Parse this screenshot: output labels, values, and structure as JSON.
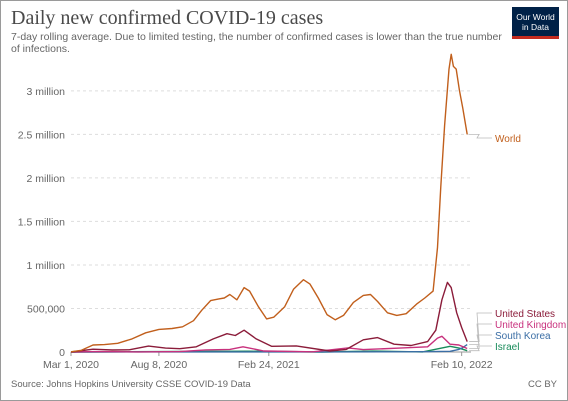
{
  "title": "Daily new confirmed COVID-19 cases",
  "subtitle": "7-day rolling average. Due to limited testing, the number of confirmed cases is lower than the true number of infections.",
  "logo": {
    "line1": "Our World",
    "line2": "in Data"
  },
  "footer": {
    "source": "Source: Johns Hopkins University CSSE COVID-19 Data",
    "license": "CC BY"
  },
  "chart_data": {
    "type": "line",
    "ylim": [
      0,
      3400000
    ],
    "y_ticks": [
      {
        "value": 0,
        "label": "0"
      },
      {
        "value": 500000,
        "label": "500,000"
      },
      {
        "value": 1000000,
        "label": "1 million"
      },
      {
        "value": 1500000,
        "label": "1.5 million"
      },
      {
        "value": 2000000,
        "label": "2 million"
      },
      {
        "value": 2500000,
        "label": "2.5 million"
      },
      {
        "value": 3000000,
        "label": "3 million"
      }
    ],
    "x_range": [
      "2020-03-01",
      "2022-02-27"
    ],
    "x_ticks": [
      {
        "date": "2020-03-01",
        "label": "Mar 1, 2020"
      },
      {
        "date": "2020-08-08",
        "label": "Aug 8, 2020"
      },
      {
        "date": "2021-02-24",
        "label": "Feb 24, 2021"
      },
      {
        "date": "2022-02-10",
        "label": "Feb 10, 2022"
      }
    ],
    "grid": "horizontal dashed",
    "series": [
      {
        "name": "World",
        "color": "#c15f1c",
        "points": [
          [
            "2020-03-01",
            2000
          ],
          [
            "2020-03-20",
            20000
          ],
          [
            "2020-04-10",
            80000
          ],
          [
            "2020-05-01",
            85000
          ],
          [
            "2020-05-25",
            100000
          ],
          [
            "2020-06-20",
            150000
          ],
          [
            "2020-07-15",
            220000
          ],
          [
            "2020-08-08",
            260000
          ],
          [
            "2020-09-01",
            270000
          ],
          [
            "2020-09-20",
            290000
          ],
          [
            "2020-10-10",
            360000
          ],
          [
            "2020-10-25",
            480000
          ],
          [
            "2020-11-10",
            590000
          ],
          [
            "2020-11-25",
            610000
          ],
          [
            "2020-12-05",
            620000
          ],
          [
            "2020-12-15",
            660000
          ],
          [
            "2020-12-28",
            600000
          ],
          [
            "2021-01-10",
            740000
          ],
          [
            "2021-01-20",
            700000
          ],
          [
            "2021-02-05",
            520000
          ],
          [
            "2021-02-20",
            380000
          ],
          [
            "2021-03-05",
            400000
          ],
          [
            "2021-03-25",
            520000
          ],
          [
            "2021-04-10",
            720000
          ],
          [
            "2021-04-28",
            830000
          ],
          [
            "2021-05-10",
            780000
          ],
          [
            "2021-05-25",
            620000
          ],
          [
            "2021-06-10",
            430000
          ],
          [
            "2021-06-25",
            370000
          ],
          [
            "2021-07-10",
            420000
          ],
          [
            "2021-07-28",
            570000
          ],
          [
            "2021-08-15",
            650000
          ],
          [
            "2021-08-28",
            660000
          ],
          [
            "2021-09-10",
            580000
          ],
          [
            "2021-09-28",
            450000
          ],
          [
            "2021-10-15",
            420000
          ],
          [
            "2021-11-01",
            440000
          ],
          [
            "2021-11-20",
            550000
          ],
          [
            "2021-12-05",
            620000
          ],
          [
            "2021-12-20",
            700000
          ],
          [
            "2021-12-28",
            1200000
          ],
          [
            "2022-01-03",
            1900000
          ],
          [
            "2022-01-10",
            2600000
          ],
          [
            "2022-01-18",
            3250000
          ],
          [
            "2022-01-22",
            3420000
          ],
          [
            "2022-01-26",
            3280000
          ],
          [
            "2022-01-31",
            3250000
          ],
          [
            "2022-02-06",
            3000000
          ],
          [
            "2022-02-12",
            2800000
          ],
          [
            "2022-02-20",
            2500000
          ]
        ]
      },
      {
        "name": "United States",
        "color": "#8b1c3a",
        "points": [
          [
            "2020-03-01",
            0
          ],
          [
            "2020-04-10",
            32000
          ],
          [
            "2020-05-15",
            23000
          ],
          [
            "2020-06-15",
            25000
          ],
          [
            "2020-07-20",
            68000
          ],
          [
            "2020-08-20",
            45000
          ],
          [
            "2020-09-15",
            38000
          ],
          [
            "2020-10-15",
            60000
          ],
          [
            "2020-11-15",
            150000
          ],
          [
            "2020-12-10",
            210000
          ],
          [
            "2020-12-25",
            190000
          ],
          [
            "2021-01-10",
            250000
          ],
          [
            "2021-02-01",
            150000
          ],
          [
            "2021-03-01",
            65000
          ],
          [
            "2021-04-15",
            70000
          ],
          [
            "2021-06-15",
            12000
          ],
          [
            "2021-07-15",
            30000
          ],
          [
            "2021-08-15",
            140000
          ],
          [
            "2021-09-10",
            165000
          ],
          [
            "2021-10-10",
            90000
          ],
          [
            "2021-11-10",
            75000
          ],
          [
            "2021-12-10",
            120000
          ],
          [
            "2021-12-25",
            250000
          ],
          [
            "2022-01-05",
            600000
          ],
          [
            "2022-01-15",
            800000
          ],
          [
            "2022-01-22",
            740000
          ],
          [
            "2022-02-01",
            450000
          ],
          [
            "2022-02-10",
            280000
          ],
          [
            "2022-02-20",
            120000
          ]
        ]
      },
      {
        "name": "United Kingdom",
        "color": "#c8317d",
        "points": [
          [
            "2020-03-01",
            0
          ],
          [
            "2020-04-15",
            5000
          ],
          [
            "2020-07-01",
            600
          ],
          [
            "2020-09-15",
            5000
          ],
          [
            "2020-11-01",
            24000
          ],
          [
            "2020-12-15",
            30000
          ],
          [
            "2021-01-08",
            60000
          ],
          [
            "2021-02-15",
            12000
          ],
          [
            "2021-05-15",
            2000
          ],
          [
            "2021-07-18",
            47000
          ],
          [
            "2021-08-15",
            28000
          ],
          [
            "2021-10-20",
            45000
          ],
          [
            "2021-12-10",
            60000
          ],
          [
            "2021-12-28",
            160000
          ],
          [
            "2022-01-05",
            180000
          ],
          [
            "2022-01-20",
            90000
          ],
          [
            "2022-02-05",
            80000
          ],
          [
            "2022-02-20",
            40000
          ]
        ]
      },
      {
        "name": "South Korea",
        "color": "#3b6ea5",
        "points": [
          [
            "2020-03-01",
            500
          ],
          [
            "2021-06-01",
            600
          ],
          [
            "2021-12-01",
            4000
          ],
          [
            "2022-01-20",
            8000
          ],
          [
            "2022-02-05",
            30000
          ],
          [
            "2022-02-12",
            50000
          ],
          [
            "2022-02-20",
            85000
          ]
        ]
      },
      {
        "name": "Israel",
        "color": "#188b5a",
        "points": [
          [
            "2020-03-01",
            0
          ],
          [
            "2020-09-25",
            6000
          ],
          [
            "2021-01-18",
            9000
          ],
          [
            "2021-06-01",
            100
          ],
          [
            "2021-09-01",
            10000
          ],
          [
            "2021-12-01",
            700
          ],
          [
            "2022-01-20",
            65000
          ],
          [
            "2022-02-05",
            45000
          ],
          [
            "2022-02-20",
            15000
          ]
        ]
      }
    ]
  }
}
